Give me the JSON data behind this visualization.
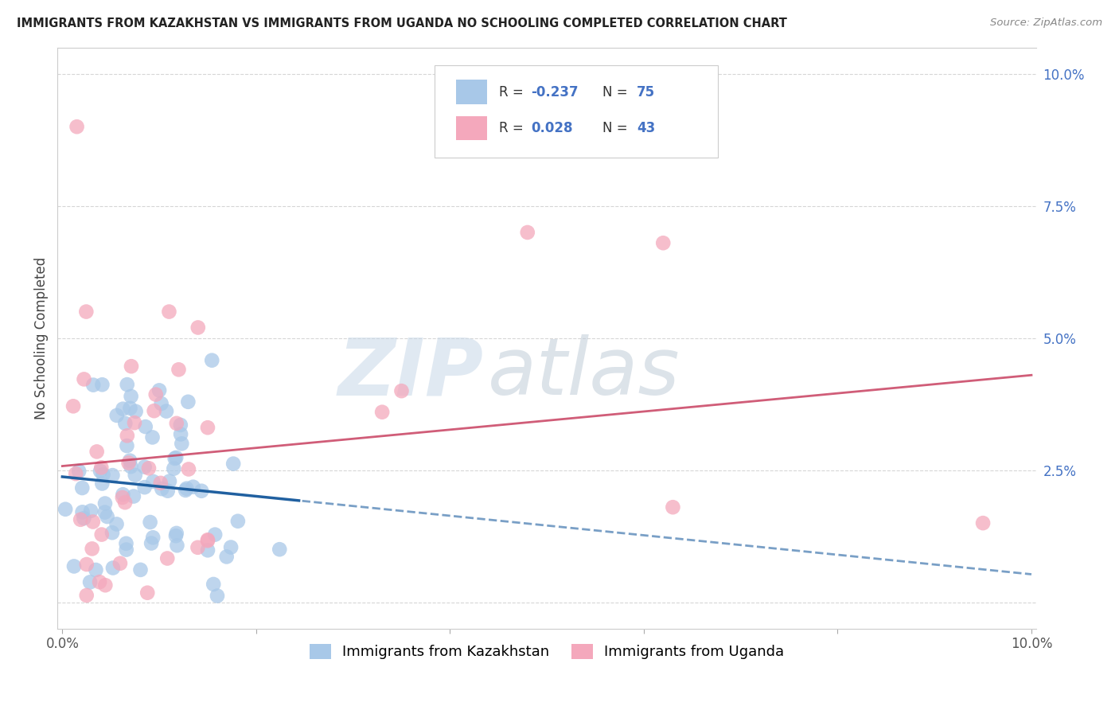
{
  "title": "IMMIGRANTS FROM KAZAKHSTAN VS IMMIGRANTS FROM UGANDA NO SCHOOLING COMPLETED CORRELATION CHART",
  "source": "Source: ZipAtlas.com",
  "ylabel": "No Schooling Completed",
  "legend_label1": "Immigrants from Kazakhstan",
  "legend_label2": "Immigrants from Uganda",
  "R1": -0.237,
  "N1": 75,
  "R2": 0.028,
  "N2": 43,
  "color1": "#a8c8e8",
  "color2": "#f4a8bc",
  "line_color1": "#2060a0",
  "line_color2": "#c84060",
  "xmin": 0.0,
  "xmax": 0.1,
  "ymin": -0.005,
  "ymax": 0.105,
  "background_color": "#ffffff",
  "grid_color": "#cccccc",
  "watermark1": "ZIP",
  "watermark2": "atlas",
  "seed": 12345,
  "title_color": "#222222",
  "source_color": "#888888",
  "axis_label_color": "#4472c4",
  "tick_label_color": "#555555",
  "legend_R_color": "#4472c4",
  "legend_N_color": "#4472c4"
}
